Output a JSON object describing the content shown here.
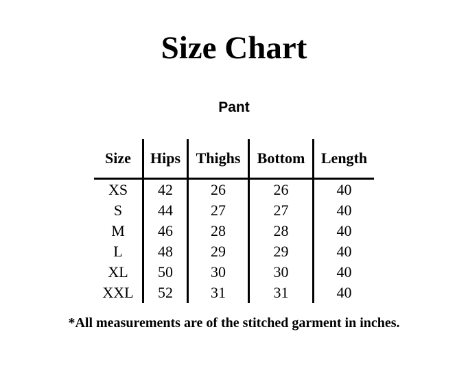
{
  "title": "Size Chart",
  "subtitle": "Pant",
  "table": {
    "headers": [
      "Size",
      "Hips",
      "Thighs",
      "Bottom",
      "Length"
    ],
    "rows": [
      [
        "XS",
        "42",
        "26",
        "26",
        "40"
      ],
      [
        "S",
        "44",
        "27",
        "27",
        "40"
      ],
      [
        "M",
        "46",
        "28",
        "28",
        "40"
      ],
      [
        "L",
        "48",
        "29",
        "29",
        "40"
      ],
      [
        "XL",
        "50",
        "30",
        "30",
        "40"
      ],
      [
        "XXL",
        "52",
        "31",
        "31",
        "40"
      ]
    ]
  },
  "footnote": "*All measurements are of the stitched garment in inches."
}
